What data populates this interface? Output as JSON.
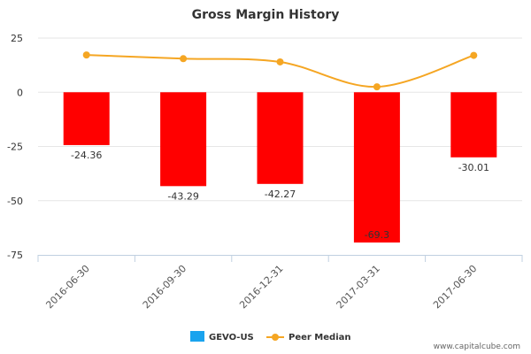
{
  "chart_data": {
    "type": "bar",
    "title": "Gross Margin History",
    "categories": [
      "2016-06-30",
      "2016-09-30",
      "2016-12-31",
      "2017-03-31",
      "2017-06-30"
    ],
    "series": [
      {
        "name": "GEVO-US",
        "type": "bar",
        "color": "#ff0000",
        "legend_color": "#1aa3ee",
        "values": [
          -24.36,
          -43.29,
          -42.27,
          -69.3,
          -30.01
        ],
        "labels": [
          "-24.36",
          "-43.29",
          "-42.27",
          "-69.3",
          "-30.01"
        ]
      },
      {
        "name": "Peer Median",
        "type": "line",
        "color": "#f5a623",
        "values": [
          17.2,
          15.5,
          14.0,
          2.5,
          17.0
        ]
      }
    ],
    "yticks": [
      25,
      0,
      -25,
      -50,
      -75
    ],
    "ytick_labels": [
      "25",
      "0",
      "-25",
      "-50",
      "-75"
    ],
    "ylim": [
      -75,
      25
    ],
    "xlabel": "",
    "ylabel": "",
    "legend_position": "bottom-center"
  },
  "credit": "www.capitalcube.com"
}
